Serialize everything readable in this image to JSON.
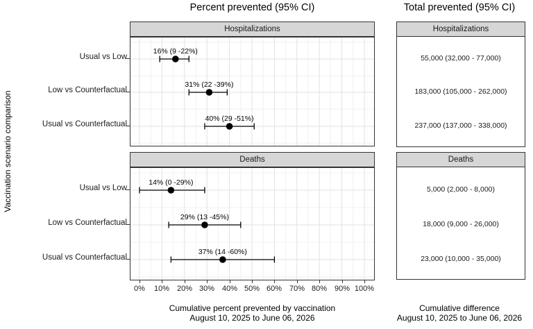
{
  "figure": {
    "left_title": "Percent prevented (95% CI)",
    "right_title": "Total prevented (95% CI)",
    "y_axis_label": "Vaccination scenario comparison",
    "left_caption_line1": "Cumulative percent prevented by vaccination",
    "left_caption_line2": "August 10, 2025 to June 06, 2026",
    "right_caption_line1": "Cumulative difference",
    "right_caption_line2": "August 10, 2025 to June 06, 2026"
  },
  "chart_data": {
    "type": "scatter",
    "subtype": "forest-pointrange-with-facets",
    "title": "Percent prevented (95% CI)",
    "companion_title": "Total prevented (95% CI)",
    "ylabel": "Vaccination scenario comparison",
    "xlabel": "Cumulative percent prevented by vaccination, August 10, 2025 to June 06, 2026",
    "categories": [
      "Usual vs Low",
      "Low vs Counterfactual",
      "Usual vs Counterfactual"
    ],
    "x_tick_labels": [
      "0%",
      "10%",
      "20%",
      "30%",
      "40%",
      "50%",
      "60%",
      "70%",
      "80%",
      "90%",
      "100%"
    ],
    "xlim": [
      0,
      100
    ],
    "grid": true,
    "legend_position": "none",
    "facets": [
      {
        "label": "Hospitalizations",
        "points": [
          {
            "category": "Usual vs Low",
            "estimate": 16,
            "lower": 9,
            "upper": 22,
            "annotation": "16% (9 -22%)"
          },
          {
            "category": "Low vs Counterfactual",
            "estimate": 31,
            "lower": 22,
            "upper": 39,
            "annotation": "31% (22 -39%)"
          },
          {
            "category": "Usual vs Counterfactual",
            "estimate": 40,
            "lower": 29,
            "upper": 51,
            "annotation": "40% (29 -51%)"
          }
        ],
        "totals": [
          "55,000 (32,000 - 77,000)",
          "183,000 (105,000 - 262,000)",
          "237,000 (137,000 - 338,000)"
        ]
      },
      {
        "label": "Deaths",
        "points": [
          {
            "category": "Usual vs Low",
            "estimate": 14,
            "lower": 0,
            "upper": 29,
            "annotation": "14% (0 -29%)"
          },
          {
            "category": "Low vs Counterfactual",
            "estimate": 29,
            "lower": 13,
            "upper": 45,
            "annotation": "29% (13 -45%)"
          },
          {
            "category": "Usual vs Counterfactual",
            "estimate": 37,
            "lower": 14,
            "upper": 60,
            "annotation": "37% (14 -60%)"
          }
        ],
        "totals": [
          "5,000 (2,000 - 8,000)",
          "18,000 (9,000 - 26,000)",
          "23,000 (10,000 - 35,000)"
        ]
      }
    ],
    "colors": {
      "point": "#000000",
      "strip_fill": "#d6d6d6",
      "border": "#333333",
      "grid_major": "#e2e2e2",
      "grid_minor": "#f0f0f0",
      "text": "#000000"
    }
  }
}
